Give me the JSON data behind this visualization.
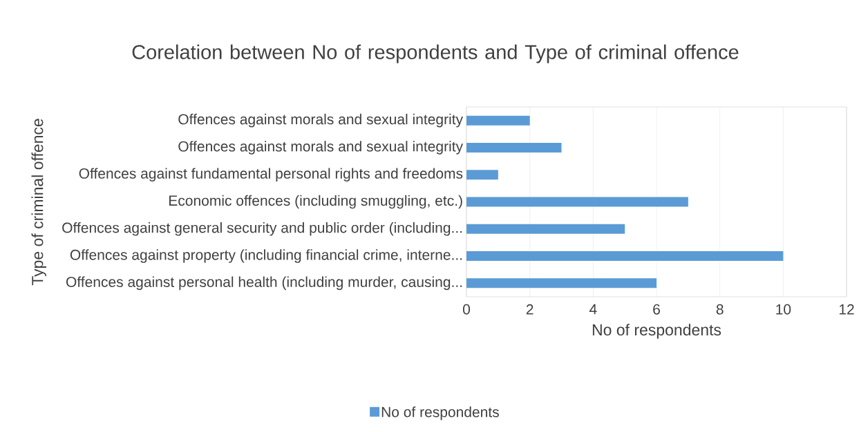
{
  "chart_data": {
    "type": "bar",
    "orientation": "horizontal",
    "title": "Corelation between No of respondents and Type of criminal offence",
    "xlabel": "No of respondents",
    "ylabel": "Type of criminal offence",
    "categories": [
      "Offences against morals and sexual integrity",
      "Offences against morals and sexual integrity",
      "Offences against fundamental personal rights and freedoms",
      "Economic offences (including smuggling, etc.)",
      "Offences against general security and public order (including...",
      "Offences against property (including financial crime, interne...",
      "Offences against personal health (including murder, causing..."
    ],
    "series": [
      {
        "name": "No of respondents",
        "color": "#5b9bd5",
        "values": [
          2,
          3,
          1,
          7,
          5,
          10,
          6
        ]
      }
    ],
    "xlim": [
      0,
      12
    ],
    "xticks": [
      0,
      2,
      4,
      6,
      8,
      10,
      12
    ],
    "grid": "x",
    "legend": "bottom"
  }
}
